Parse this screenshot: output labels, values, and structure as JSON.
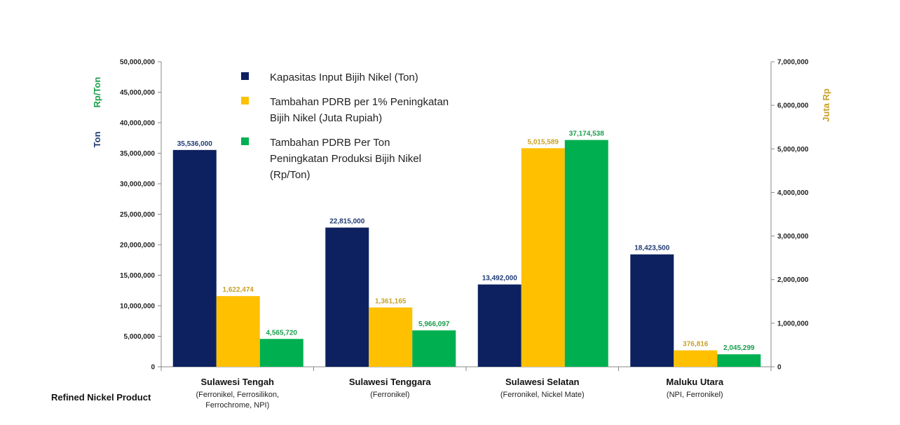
{
  "chart_data": {
    "type": "bar",
    "categories": [
      {
        "name": "Sulawesi Tengah",
        "sub": [
          "(Ferronikel, Ferrosilikon,",
          "Ferrochrome, NPI)"
        ]
      },
      {
        "name": "Sulawesi Tenggara",
        "sub": [
          "(Ferronikel)"
        ]
      },
      {
        "name": "Sulawesi Selatan",
        "sub": [
          "(Ferronikel, Nickel Mate)"
        ]
      },
      {
        "name": "Maluku Utara",
        "sub": [
          "(NPI, Ferronikel)"
        ]
      }
    ],
    "row_label": "Refined Nickel Product",
    "left_axis": {
      "title_parts": [
        {
          "text": "Ton",
          "color": "#1f3b73"
        },
        {
          "text": "Rp/Ton",
          "color": "#1a9e4b"
        }
      ],
      "min": 0,
      "max": 50000000,
      "step": 5000000,
      "tick_labels": [
        "0",
        "5,000,000",
        "10,000,000",
        "15,000,000",
        "20,000,000",
        "25,000,000",
        "30,000,000",
        "35,000,000",
        "40,000,000",
        "45,000,000",
        "50,000,000"
      ]
    },
    "right_axis": {
      "title": "Juta Rp",
      "color": "#c9a227",
      "min": 0,
      "max": 7000000,
      "step": 1000000,
      "tick_labels": [
        "0",
        "1,000,000",
        "2,000,000",
        "3,000,000",
        "4,000,000",
        "5,000,000",
        "6,000,000",
        "7,000,000"
      ]
    },
    "series": [
      {
        "name": "Kapasitas Input Bijih Nikel (Ton)",
        "legend_lines": [
          "Kapasitas Input Bijih Nikel (Ton)"
        ],
        "color": "#0d2160",
        "label_color": "#1f3b73",
        "axis": "left",
        "values": [
          35536000,
          22815000,
          13492000,
          18423500
        ],
        "labels": [
          "35,536,000",
          "22,815,000",
          "13,492,000",
          "18,423,500"
        ]
      },
      {
        "name": "Tambahan PDRB per 1% Peningkatan Bijih Nikel (Juta Rupiah)",
        "legend_lines": [
          "Tambahan PDRB per 1% Peningkatan",
          "Bijih Nikel (Juta Rupiah)"
        ],
        "color": "#ffc000",
        "label_color": "#c9a227",
        "axis": "right",
        "values": [
          1622474,
          1361165,
          5015589,
          376816
        ],
        "labels": [
          "1,622,474",
          "1,361,165",
          "5,015,589",
          "376,816"
        ]
      },
      {
        "name": "Tambahan PDRB Per Ton Peningkatan Produksi Bijih Nikel (Rp/Ton)",
        "legend_lines": [
          "Tambahan PDRB Per Ton",
          "Peningkatan Produksi Bijih Nikel",
          "(Rp/Ton)"
        ],
        "color": "#00b050",
        "label_color": "#1a9e4b",
        "axis": "left",
        "values": [
          4565720,
          5966097,
          37174538,
          2045299
        ],
        "labels": [
          "4,565,720",
          "5,966,097",
          "37,174,538",
          "2,045,299"
        ]
      }
    ],
    "legend_placement": "top-left",
    "grid": false
  }
}
